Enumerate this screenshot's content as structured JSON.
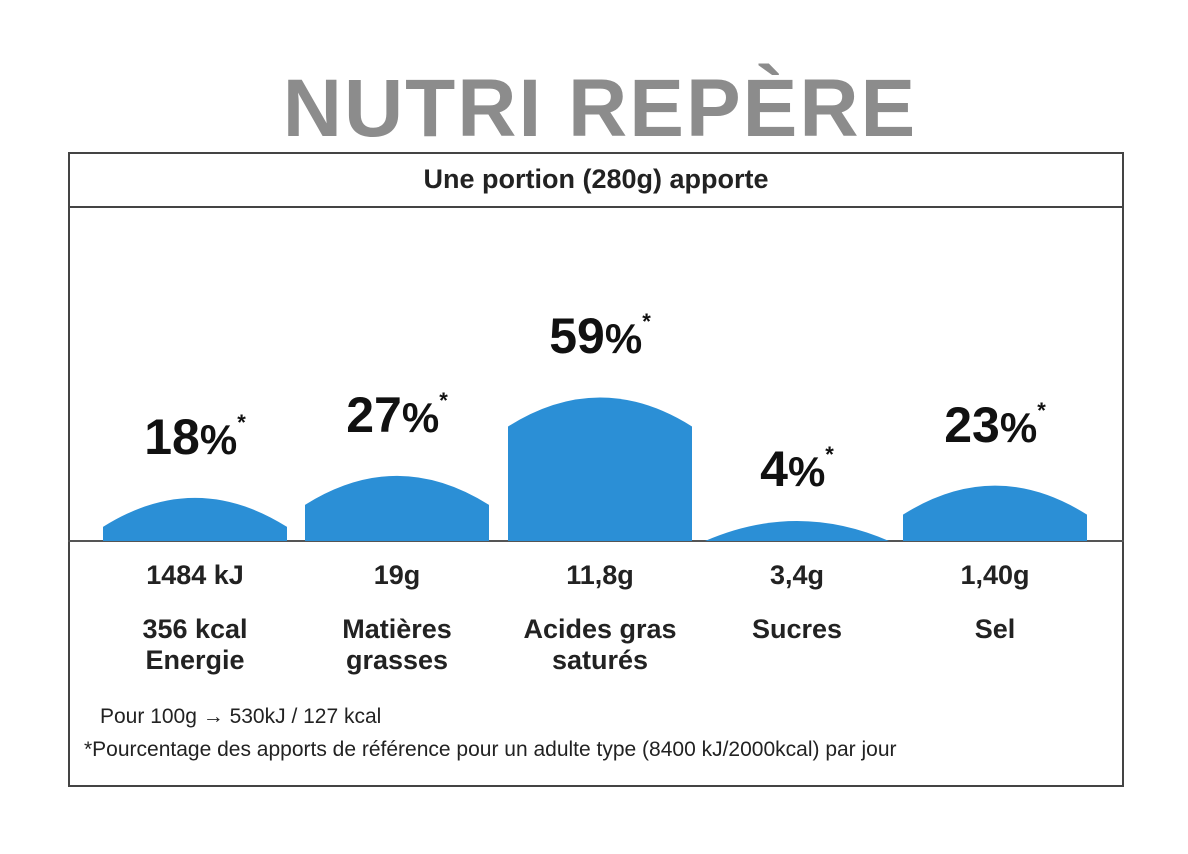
{
  "title": "NUTRI REPÈRE",
  "subtitle": "Une portion (280g) apporte",
  "chart_data": {
    "type": "bar",
    "categories": [
      "Energie",
      "Matières grasses",
      "Acides gras saturés",
      "Sucres",
      "Sel"
    ],
    "values": [
      18,
      27,
      59,
      4,
      23
    ],
    "percent_labels": [
      "18%",
      "27%",
      "59%",
      "4%",
      "23%"
    ],
    "asterisk": "*",
    "amounts": [
      "1484 kJ",
      "19g",
      "11,8g",
      "3,4g",
      "1,40g"
    ],
    "name_lines": [
      [
        "356 kcal",
        "Energie"
      ],
      [
        "Matières",
        "grasses"
      ],
      [
        "Acides gras",
        "saturés"
      ],
      [
        "Sucres"
      ],
      [
        "Sel"
      ]
    ],
    "bar_color": "#2b8fd6"
  },
  "footnote_per100": "Pour 100g → 530kJ / 127 kcal",
  "footnote_ref": "*Pourcentage des apports de référence pour un adulte type (8400 kJ/2000kcal) par jour"
}
